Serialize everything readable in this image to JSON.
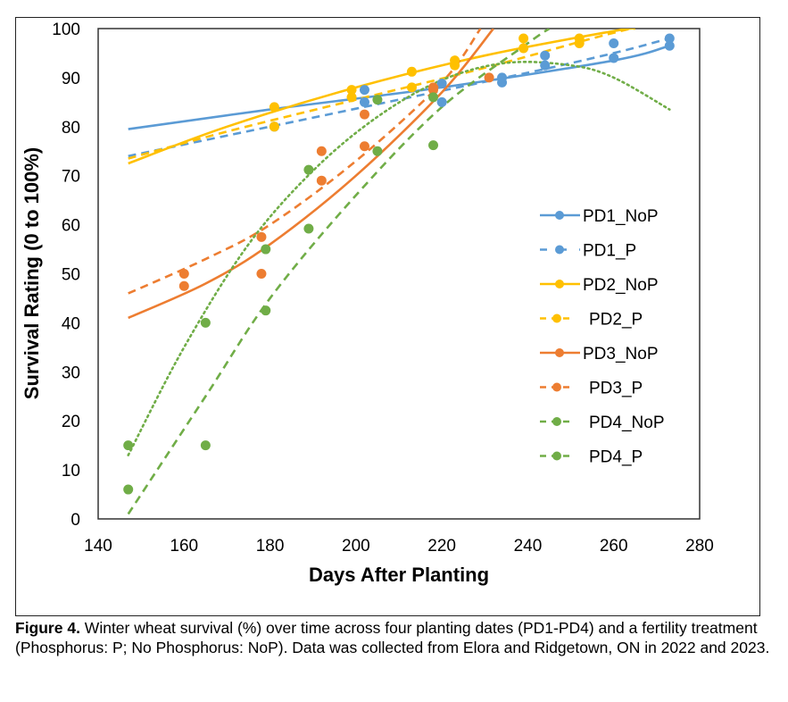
{
  "chart_data": {
    "type": "scatter",
    "title": "",
    "xlabel": "Days After Planting",
    "ylabel": "Survival Rating (0 to 100%)",
    "xlim": [
      140,
      280
    ],
    "ylim": [
      0,
      100
    ],
    "xticks": [
      140,
      160,
      180,
      200,
      220,
      240,
      260,
      280
    ],
    "yticks": [
      0,
      10,
      20,
      30,
      40,
      50,
      60,
      70,
      80,
      90,
      100
    ],
    "grid": false,
    "legend_position": "right",
    "series": [
      {
        "name": "PD1_NoP",
        "color": "#5B9BD5",
        "line": "solid",
        "points": [
          [
            202,
            87.5
          ],
          [
            220,
            85
          ],
          [
            234,
            89
          ],
          [
            244,
            94.5
          ],
          [
            260,
            94
          ],
          [
            273,
            96.5
          ]
        ],
        "trend": [
          [
            147,
            79.5
          ],
          [
            180,
            83.5
          ],
          [
            220,
            88
          ],
          [
            260,
            93.5
          ],
          [
            273,
            96.5
          ]
        ]
      },
      {
        "name": "PD1_P",
        "color": "#5B9BD5",
        "line": "dashed",
        "points": [
          [
            181,
            80
          ],
          [
            202,
            85
          ],
          [
            220,
            88.8
          ],
          [
            234,
            90
          ],
          [
            244,
            92.5
          ],
          [
            260,
            97
          ],
          [
            273,
            98
          ]
        ],
        "trend": [
          [
            147,
            74
          ],
          [
            180,
            80
          ],
          [
            210,
            85.5
          ],
          [
            240,
            91
          ],
          [
            260,
            95
          ],
          [
            273,
            98
          ]
        ]
      },
      {
        "name": "PD2_NoP",
        "color": "#FFC000",
        "line": "solid",
        "points": [
          [
            181,
            84
          ],
          [
            199,
            87.5
          ],
          [
            213,
            91.2
          ],
          [
            223,
            93.5
          ],
          [
            239,
            98
          ],
          [
            252,
            98
          ]
        ],
        "trend": [
          [
            147,
            72.5
          ],
          [
            170,
            80
          ],
          [
            200,
            88
          ],
          [
            230,
            94.5
          ],
          [
            260,
            99.5
          ],
          [
            265,
            100
          ]
        ]
      },
      {
        "name": "PD2_P",
        "color": "#FFC000",
        "line": "dashed",
        "points": [
          [
            181,
            80
          ],
          [
            199,
            86
          ],
          [
            213,
            88
          ],
          [
            223,
            92.5
          ],
          [
            239,
            96
          ],
          [
            252,
            97
          ]
        ],
        "trend": [
          [
            147,
            73.5
          ],
          [
            170,
            79
          ],
          [
            200,
            85.5
          ],
          [
            230,
            92
          ],
          [
            255,
            98
          ],
          [
            264,
            100
          ]
        ]
      },
      {
        "name": "PD3_NoP",
        "color": "#ED7D31",
        "line": "solid",
        "points": [
          [
            160,
            47.5
          ],
          [
            178,
            50
          ],
          [
            192,
            69
          ],
          [
            202,
            76
          ],
          [
            218,
            88
          ],
          [
            231,
            90
          ]
        ],
        "trend": [
          [
            147,
            41
          ],
          [
            165,
            48
          ],
          [
            180,
            56
          ],
          [
            200,
            70
          ],
          [
            220,
            87
          ],
          [
            232,
            100
          ]
        ]
      },
      {
        "name": "PD3_P",
        "color": "#ED7D31",
        "line": "dashed",
        "points": [
          [
            160,
            50
          ],
          [
            178,
            57.5
          ],
          [
            192,
            75
          ],
          [
            202,
            82.5
          ],
          [
            218,
            87.5
          ]
        ],
        "trend": [
          [
            147,
            46
          ],
          [
            165,
            53
          ],
          [
            180,
            60
          ],
          [
            200,
            73
          ],
          [
            220,
            89
          ],
          [
            229,
            100
          ]
        ]
      },
      {
        "name": "PD4_NoP",
        "color": "#70AD47",
        "line": "dotted",
        "points": [
          [
            147,
            15
          ],
          [
            165,
            40
          ],
          [
            179,
            55
          ],
          [
            189,
            71.2
          ],
          [
            205,
            85.5
          ],
          [
            218,
            86
          ]
        ],
        "trend": [
          [
            147,
            13
          ],
          [
            160,
            35
          ],
          [
            175,
            56
          ],
          [
            190,
            71
          ],
          [
            205,
            82
          ],
          [
            220,
            89.5
          ],
          [
            235,
            93
          ],
          [
            250,
            92.5
          ],
          [
            260,
            90
          ],
          [
            273,
            83.5
          ]
        ]
      },
      {
        "name": "PD4_P",
        "color": "#70AD47",
        "line": "dashed",
        "points": [
          [
            147,
            6
          ],
          [
            165,
            15
          ],
          [
            179,
            42.5
          ],
          [
            189,
            59.2
          ],
          [
            205,
            75
          ],
          [
            218,
            76.2
          ]
        ],
        "trend": [
          [
            147,
            1
          ],
          [
            165,
            25
          ],
          [
            180,
            45
          ],
          [
            200,
            66
          ],
          [
            220,
            84
          ],
          [
            240,
            97
          ],
          [
            245,
            100
          ]
        ]
      }
    ]
  },
  "caption": {
    "label": "Figure 4.",
    "text": " Winter wheat survival (%) over time across four planting dates (PD1-PD4) and a fertility treatment (Phosphorus: P; No Phosphorus: NoP). Data was collected from Elora and Ridgetown, ON in 2022 and 2023."
  }
}
